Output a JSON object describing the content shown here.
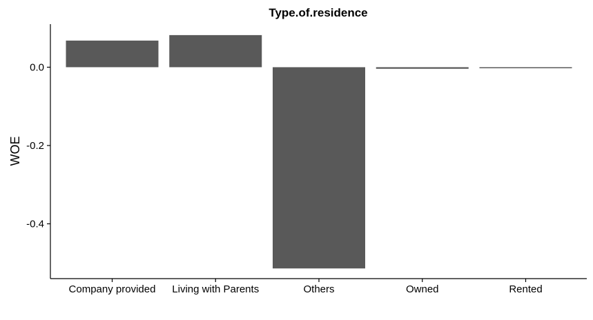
{
  "chart_data": {
    "type": "bar",
    "title": "Type.of.residence",
    "xlabel": "",
    "ylabel": "WOE",
    "categories": [
      "Company provided",
      "Living with Parents",
      "Others",
      "Owned",
      "Rented"
    ],
    "values": [
      0.068,
      0.082,
      -0.514,
      -0.004,
      -0.002
    ],
    "ylim": [
      -0.54,
      0.11
    ],
    "yticks": [
      0.0,
      -0.2,
      -0.4
    ],
    "ytick_labels": [
      "0.0",
      "-0.2",
      "-0.4"
    ],
    "grid": false,
    "legend": "none",
    "bar_color": "#595959"
  }
}
